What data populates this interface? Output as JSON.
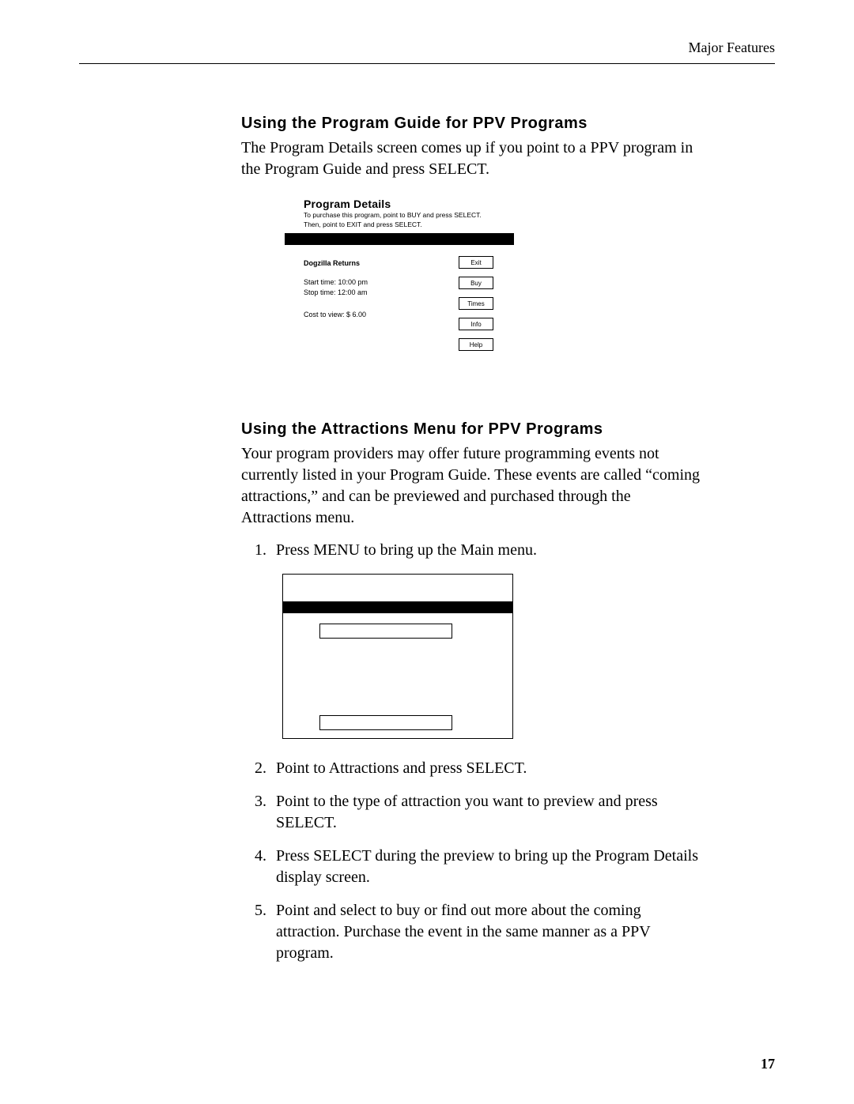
{
  "header": {
    "section_label": "Major Features"
  },
  "section1": {
    "heading": "Using the Program Guide for PPV Programs",
    "intro": "The Program Details screen comes up if you point to a PPV program in the Program Guide and press SELECT."
  },
  "program_details": {
    "title": "Program Details",
    "subtitle_line1": "To purchase this program, point to BUY and press SELECT.",
    "subtitle_line2": "Then, point to EXIT and press SELECT.",
    "program_name": "Dogzilla Returns",
    "start_time": "Start time: 10:00 pm",
    "stop_time": "Stop time: 12:00 am",
    "cost": "Cost to view: $ 6.00",
    "buttons": {
      "exit": "Exit",
      "buy": "Buy",
      "times": "Times",
      "info": "Info",
      "help": "Help"
    }
  },
  "section2": {
    "heading": "Using the Attractions Menu for PPV Programs",
    "intro": "Your program providers may offer future programming events not currently listed in your Program Guide. These events are called “coming attractions,” and can be previewed and purchased through the Attractions menu.",
    "steps": {
      "1": "Press MENU to bring up the Main menu.",
      "2": "Point to Attractions and press SELECT.",
      "3": "Point to the type of attraction you want to preview and press SELECT.",
      "4": "Press SELECT during the preview to bring up the Program Details display screen.",
      "5": "Point and select to buy or find out more about the coming attraction. Purchase the event in the same manner as a PPV program."
    }
  },
  "page_number": "17"
}
